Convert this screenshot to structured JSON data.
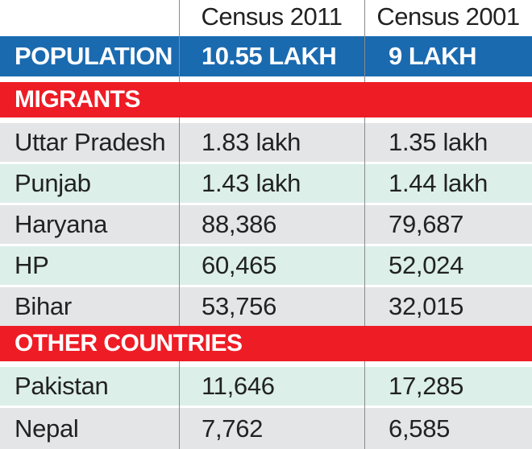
{
  "header": {
    "col1": "Census 2011",
    "col2": "Census 2001"
  },
  "population": {
    "label": "POPULATION",
    "census_2011": "10.55 LAKH",
    "census_2001": "9 LAKH"
  },
  "sections": [
    {
      "title": "MIGRANTS",
      "rows": [
        {
          "label": "Uttar Pradesh",
          "census_2011": "1.83 lakh",
          "census_2001": "1.35 lakh"
        },
        {
          "label": "Punjab",
          "census_2011": "1.43 lakh",
          "census_2001": "1.44 lakh"
        },
        {
          "label": "Haryana",
          "census_2011": "88,386",
          "census_2001": "79,687"
        },
        {
          "label": "HP",
          "census_2011": "60,465",
          "census_2001": "52,024"
        },
        {
          "label": "Bihar",
          "census_2011": "53,756",
          "census_2001": "32,015"
        }
      ]
    },
    {
      "title": "OTHER COUNTRIES",
      "rows": [
        {
          "label": "Pakistan",
          "census_2011": "11,646",
          "census_2001": "17,285"
        },
        {
          "label": "Nepal",
          "census_2011": "7,762",
          "census_2001": "6,585"
        }
      ]
    }
  ],
  "colors": {
    "population_bg": "#1a6ab0",
    "section_bg": "#ee1c25",
    "row_gray": "#e4e5e7",
    "row_green": "#dcefe9"
  }
}
